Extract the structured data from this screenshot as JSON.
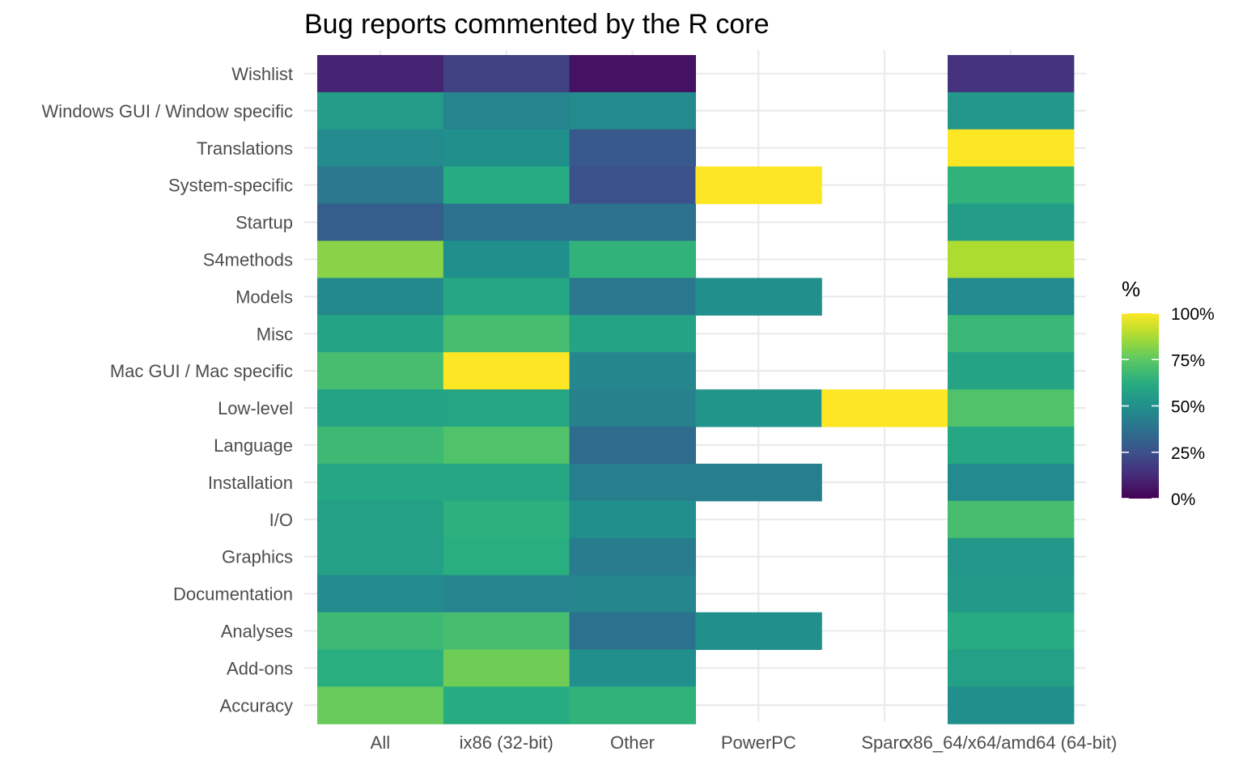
{
  "chart_data": {
    "type": "heatmap",
    "title": "Bug reports commented by the R core",
    "xlabel": "",
    "ylabel": "",
    "x_categories": [
      "All",
      "ix86 (32-bit)",
      "Other",
      "PowerPC",
      "Sparc",
      "x86_64/x64/amd64 (64-bit)"
    ],
    "y_categories": [
      "Wishlist",
      "Windows GUI / Window specific",
      "Translations",
      "System-specific",
      "Startup",
      "S4methods",
      "Models",
      "Misc",
      "Mac GUI / Mac specific",
      "Low-level",
      "Language",
      "Installation",
      "I/O",
      "Graphics",
      "Documentation",
      "Analyses",
      "Add-ons",
      "Accuracy"
    ],
    "values": [
      [
        10,
        20,
        5,
        null,
        null,
        15
      ],
      [
        55,
        45,
        48,
        null,
        null,
        53
      ],
      [
        48,
        50,
        28,
        null,
        null,
        100
      ],
      [
        40,
        62,
        25,
        100,
        null,
        65
      ],
      [
        30,
        38,
        38,
        null,
        null,
        55
      ],
      [
        82,
        50,
        65,
        null,
        null,
        88
      ],
      [
        47,
        60,
        40,
        50,
        null,
        48
      ],
      [
        58,
        70,
        58,
        null,
        null,
        67
      ],
      [
        70,
        100,
        46,
        null,
        null,
        58
      ],
      [
        58,
        59,
        44,
        52,
        100,
        72
      ],
      [
        68,
        72,
        35,
        null,
        null,
        60
      ],
      [
        60,
        60,
        43,
        43,
        null,
        48
      ],
      [
        57,
        64,
        50,
        null,
        null,
        70
      ],
      [
        57,
        63,
        42,
        null,
        null,
        53
      ],
      [
        48,
        45,
        46,
        null,
        null,
        54
      ],
      [
        68,
        70,
        38,
        50,
        null,
        62
      ],
      [
        63,
        78,
        50,
        null,
        null,
        57
      ],
      [
        77,
        62,
        65,
        null,
        null,
        50
      ]
    ],
    "colorscale": "viridis",
    "color_range": [
      0,
      100
    ],
    "legend": {
      "title": "%",
      "labels": [
        "100%",
        "75%",
        "50%",
        "25%",
        "0%"
      ],
      "breaks": [
        100,
        75,
        50,
        25,
        0
      ],
      "position": "right"
    },
    "grid": true
  }
}
